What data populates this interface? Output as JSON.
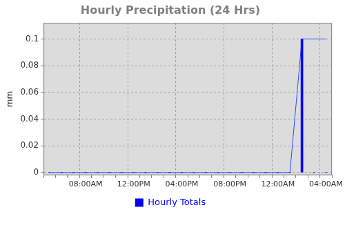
{
  "chart_data": {
    "type": "bar",
    "title": "Hourly Precipitation (24 Hrs)",
    "y_label": "mm",
    "categories": [
      null,
      null,
      null,
      "08:00AM",
      null,
      null,
      null,
      "12:00PM",
      null,
      null,
      null,
      "04:00PM",
      null,
      null,
      null,
      "08:00PM",
      null,
      null,
      null,
      "12:00AM",
      null,
      null,
      null,
      "04:00AM"
    ],
    "series": [
      {
        "name": "Hourly Totals",
        "type": "bar",
        "color": "#0000ff",
        "values": [
          0,
          0,
          0,
          0,
          0,
          0,
          0,
          0,
          0,
          0,
          0,
          0,
          0,
          0,
          0,
          0,
          0,
          0,
          0,
          0,
          0,
          0.1,
          0,
          0
        ]
      },
      {
        "type": "line",
        "color": "#2a4bff",
        "values": [
          0,
          0,
          0,
          0,
          0,
          0,
          0,
          0,
          0,
          0,
          0,
          0,
          0,
          0,
          0,
          0,
          0,
          0,
          0,
          0,
          0,
          0.1,
          0.1,
          0.1
        ]
      }
    ],
    "ylim": [
      -0.002,
      0.112
    ],
    "yticks": [
      0,
      0.02,
      0.04,
      0.06,
      0.08,
      0.1
    ],
    "grid": true,
    "legend": "bottom"
  }
}
